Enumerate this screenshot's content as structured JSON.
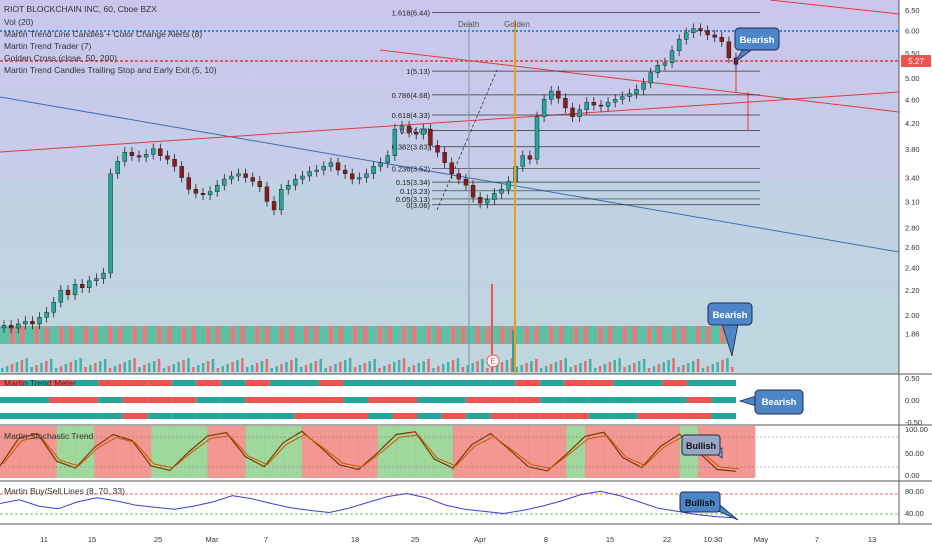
{
  "main": {
    "indicator_lines": [
      "RIOT BLOCKCHAIN INC, 60, Cboe BZX",
      "Vol (20)",
      "Martin Trend Line Candles + Color Change Alerts (8)",
      "Martin Trend Trader (7)",
      "Golden Cross (close, 50, 200)",
      "Martin Trend Candles Trailing Stop and Early Exit (5, 10)"
    ],
    "event_labels": {
      "death": "Death",
      "golden": "Golden",
      "earnings": "E"
    },
    "callouts": {
      "price": "Bearish",
      "volume": "Bearish"
    },
    "last_price": "5.27"
  },
  "fib_levels": [
    {
      "label": "1.618(6.44)",
      "price": 6.44
    },
    {
      "label": "1(5.13)",
      "price": 5.13
    },
    {
      "label": "0.786(4.68)",
      "price": 4.68
    },
    {
      "label": "0.618(4.33)",
      "price": 4.33
    },
    {
      "label": "0.5(4.08)",
      "price": 4.08
    },
    {
      "label": "0.382(3.83)",
      "price": 3.83
    },
    {
      "label": "0.236(3.52)",
      "price": 3.52
    },
    {
      "label": "0.15(3.34)",
      "price": 3.34
    },
    {
      "label": "0.1(3.23)",
      "price": 3.23
    },
    {
      "label": "0.05(3.13)",
      "price": 3.13
    },
    {
      "label": "0(3.06)",
      "price": 3.06
    }
  ],
  "panels": {
    "trend_meter": {
      "title": "Martin Trend Meter",
      "callout": "Bearish",
      "y_ticks": [
        "0.50",
        "0.00",
        "-0.50"
      ]
    },
    "stochastic": {
      "title": "Martin Stochastic Trend",
      "callout": "Bullish",
      "y_ticks": [
        "100.00",
        "50.00",
        "0.00"
      ]
    },
    "buysell": {
      "title": "Martin Buy/Sell Lines (8, 70, 33)",
      "callout": "Bullish",
      "y_ticks": [
        "80.00",
        "40.00"
      ]
    }
  },
  "x_axis": {
    "ticks": [
      "11",
      "15",
      "25",
      "Mar",
      "7",
      "18",
      "25",
      "Apr",
      "8",
      "15",
      "22",
      "10:30",
      "May",
      "7",
      "13"
    ]
  },
  "colors": {
    "bull": "#26a69a",
    "bear": "#ef5350",
    "fib": "#333333",
    "ma_blue": "#2962ff",
    "golden": "#f5a623",
    "main_bg_top": "#cbc7ec",
    "main_bg_bottom": "#c3d7df"
  },
  "chart_data": {
    "type": "candlestick",
    "title": "RIOT BLOCKCHAIN INC, 60, Cboe BZX",
    "x_ticks": [
      "11",
      "15",
      "25",
      "Mar",
      "7",
      "18",
      "25",
      "Apr",
      "8",
      "15",
      "22",
      "10:30",
      "May",
      "7",
      "13"
    ],
    "y_ticks": [
      6.5,
      6.0,
      5.5,
      5.0,
      4.6,
      4.2,
      3.8,
      3.4,
      3.1,
      2.8,
      2.6,
      2.4,
      2.2,
      2.0,
      1.86
    ],
    "ylim": [
      1.8,
      6.6
    ],
    "y_scale": "log",
    "last_price": 5.27,
    "close_series": [
      1.92,
      1.9,
      1.93,
      1.95,
      1.93,
      1.98,
      2.02,
      2.1,
      2.2,
      2.16,
      2.25,
      2.22,
      2.28,
      2.3,
      2.35,
      3.45,
      3.62,
      3.75,
      3.7,
      3.68,
      3.72,
      3.8,
      3.7,
      3.65,
      3.55,
      3.4,
      3.25,
      3.2,
      3.18,
      3.22,
      3.3,
      3.38,
      3.42,
      3.45,
      3.4,
      3.35,
      3.28,
      3.1,
      3.0,
      3.25,
      3.3,
      3.38,
      3.42,
      3.48,
      3.5,
      3.55,
      3.6,
      3.5,
      3.45,
      3.38,
      3.4,
      3.45,
      3.55,
      3.6,
      3.7,
      4.1,
      4.15,
      4.05,
      4.02,
      4.1,
      3.85,
      3.75,
      3.6,
      3.45,
      3.38,
      3.3,
      3.15,
      3.08,
      3.12,
      3.2,
      3.25,
      3.35,
      3.55,
      3.7,
      3.65,
      4.3,
      4.6,
      4.75,
      4.62,
      4.45,
      4.3,
      4.42,
      4.55,
      4.5,
      4.48,
      4.55,
      4.6,
      4.65,
      4.7,
      4.78,
      4.9,
      5.1,
      5.25,
      5.3,
      5.55,
      5.8,
      5.95,
      6.05,
      6.0,
      5.9,
      5.85,
      5.75,
      5.4,
      5.27
    ],
    "series": [
      {
        "name": "Martin Trend Meter",
        "values": [
          1,
          1,
          0,
          1,
          1,
          0,
          0,
          1,
          1,
          1,
          0,
          1,
          0,
          0,
          1,
          1,
          0,
          1,
          1,
          1,
          0,
          0,
          1,
          0,
          1,
          1,
          1,
          0,
          0,
          1
        ]
      },
      {
        "name": "Martin Stochastic Trend",
        "values": [
          20,
          80,
          90,
          30,
          15,
          60,
          88,
          75,
          20,
          10,
          50,
          85,
          92,
          40,
          18,
          70,
          95,
          60,
          22,
          12,
          48,
          88,
          94,
          35,
          15,
          66,
          90,
          55,
          18,
          9,
          45,
          84,
          93,
          38,
          16,
          62,
          89,
          50,
          12,
          8
        ]
      },
      {
        "name": "Martin Buy/Sell Lines (8, 70, 33)",
        "values": [
          55,
          62,
          50,
          45,
          58,
          66,
          60,
          52,
          48,
          44,
          50,
          58,
          70,
          64,
          55,
          47,
          42,
          38,
          46,
          57,
          68,
          74,
          66,
          52,
          44,
          40,
          36,
          42,
          50,
          60,
          72,
          78,
          70,
          58,
          46,
          40,
          34,
          30,
          28
        ]
      }
    ]
  }
}
